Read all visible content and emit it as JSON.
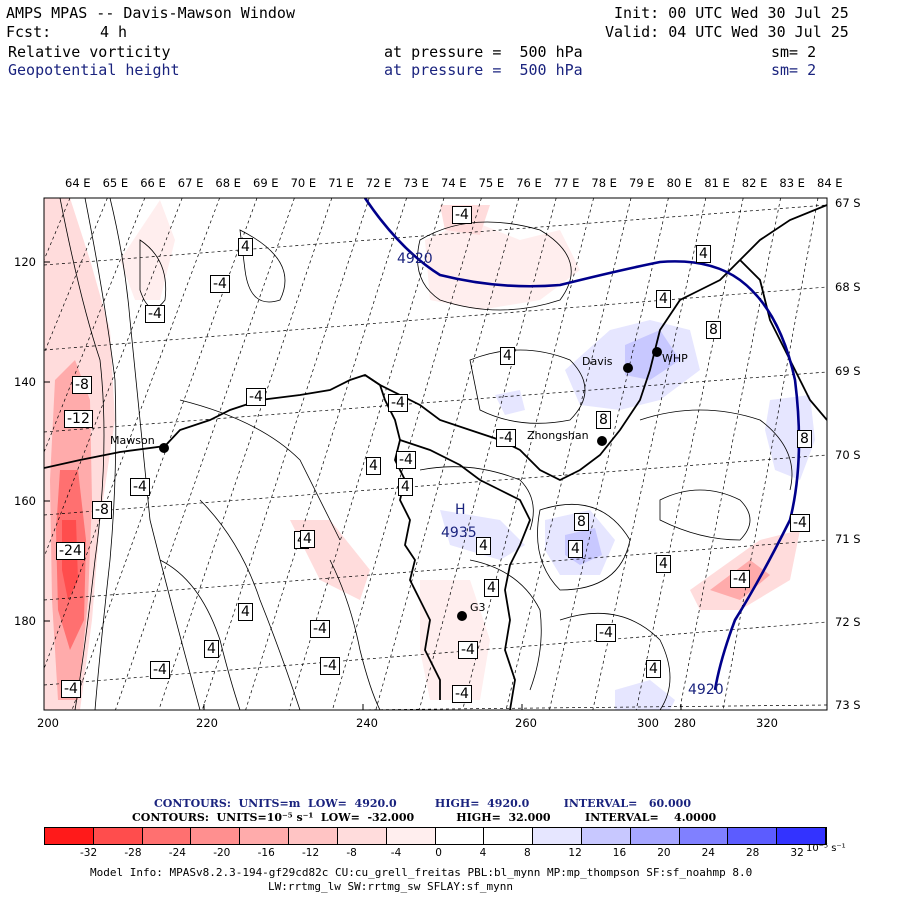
{
  "header": {
    "title": "AMPS MPAS -- Davis-Mawson Window",
    "fcst_label": "Fcst:",
    "fcst_value": "4 h",
    "init": "Init: 00 UTC Wed 30 Jul 25",
    "valid": "Valid: 04 UTC Wed 30 Jul 25",
    "field1": {
      "name": "Relative vorticity",
      "level": "at pressure =  500 hPa",
      "sm": "sm= 2"
    },
    "field2": {
      "name": "Geopotential height",
      "level": "at pressure =  500 hPa",
      "sm": "sm= 2"
    }
  },
  "map": {
    "lon_labels": [
      "64 E",
      "65 E",
      "66 E",
      "67 E",
      "68 E",
      "69 E",
      "70 E",
      "71 E",
      "72 E",
      "73 E",
      "74 E",
      "75 E",
      "76 E",
      "77 E",
      "78 E",
      "79 E",
      "80 E",
      "81 E",
      "82 E",
      "83 E",
      "84 E"
    ],
    "lat_labels": [
      "67 S",
      "68 S",
      "69 S",
      "70 S",
      "71 S",
      "72 S",
      "73 S"
    ],
    "x_ticks": [
      "200",
      "220",
      "240",
      "260",
      "280",
      "300",
      "320"
    ],
    "y_ticks": [
      "120",
      "140",
      "160",
      "180"
    ],
    "stations": [
      {
        "name": "Mawson"
      },
      {
        "name": "Davis"
      },
      {
        "name": "WHP"
      },
      {
        "name": "Zhongshan"
      },
      {
        "name": "G3"
      }
    ],
    "height_labels": [
      "4920",
      "4920",
      "4935"
    ],
    "high_marker": "H",
    "vort_labels": [
      "-4",
      "4",
      "-4",
      "-4",
      "-8",
      "-12",
      "-4",
      "-4",
      "-24",
      "-4",
      "-8",
      "4",
      "-4",
      "-4",
      "4",
      "-4",
      "-4",
      "4",
      "-4",
      "4",
      "-4",
      "-4",
      "-4",
      "4",
      "4",
      "4",
      "8",
      "4",
      "8",
      "4",
      "4",
      "8",
      "4",
      "-8",
      "-4",
      "8",
      "4",
      "4",
      "-4",
      "4",
      "-4"
    ]
  },
  "footer": {
    "contours1": "CONTOURS:  UNITS=m  LOW=  4920.0          HIGH=  4920.0         INTERVAL=   60.000",
    "contours2": "CONTOURS:  UNITS=10⁻⁵ s⁻¹  LOW=  -32.000           HIGH=  32.000         INTERVAL=    4.0000",
    "colorbar_labels": [
      "-32",
      "-28",
      "-24",
      "-20",
      "-16",
      "-12",
      "-8",
      "-4",
      "0",
      "4",
      "8",
      "12",
      "16",
      "20",
      "24",
      "28",
      "32"
    ],
    "colorbar_units": "10⁻⁵ s⁻¹",
    "colorbar_colors": [
      "#ff1a1a",
      "#ff4d4d",
      "#ff7070",
      "#ff8f8f",
      "#ffabab",
      "#ffc4c4",
      "#ffdcdc",
      "#ffeeee",
      "#ffffff",
      "#ffffff",
      "#e6e6ff",
      "#c8c8ff",
      "#a6a6ff",
      "#8080ff",
      "#5c5cff",
      "#3333ff",
      "#0a0aff"
    ],
    "model_info1": "Model Info: MPASv8.2.3-194-gf29cd82c CU:cu_grell_freitas PBL:bl_mynn MP:mp_thompson SF:sf_noahmp 8.0",
    "model_info2": "LW:rrtmg_lw SW:rrtmg_sw SFLAY:sf_mynn"
  }
}
